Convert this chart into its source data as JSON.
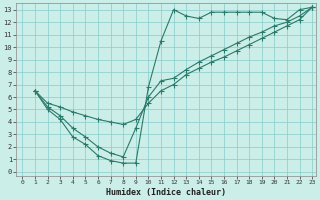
{
  "xlabel": "Humidex (Indice chaleur)",
  "bg_color": "#cceee8",
  "grid_color": "#88cccc",
  "line_color": "#2a7a6a",
  "xlim": [
    -0.5,
    23.3
  ],
  "ylim": [
    -0.3,
    13.5
  ],
  "xticks": [
    0,
    1,
    2,
    3,
    4,
    5,
    6,
    7,
    8,
    9,
    10,
    11,
    12,
    13,
    14,
    15,
    16,
    17,
    18,
    19,
    20,
    21,
    22,
    23
  ],
  "yticks": [
    0,
    1,
    2,
    3,
    4,
    5,
    6,
    7,
    8,
    9,
    10,
    11,
    12,
    13
  ],
  "line1_x": [
    1,
    2,
    3,
    4,
    5,
    6,
    7,
    8,
    9,
    10,
    11,
    12,
    13,
    14,
    15,
    16,
    17,
    18,
    19,
    20,
    21,
    22,
    23
  ],
  "line1_y": [
    6.5,
    5.0,
    4.2,
    2.8,
    2.2,
    1.3,
    0.9,
    0.7,
    0.7,
    6.8,
    10.5,
    13.0,
    12.5,
    12.3,
    12.8,
    12.8,
    12.8,
    12.8,
    12.8,
    12.3,
    12.2,
    13.0,
    13.2
  ],
  "line2_x": [
    1,
    2,
    3,
    4,
    5,
    6,
    7,
    8,
    9,
    10,
    11,
    12,
    13,
    14,
    15,
    16,
    17,
    18,
    19,
    20,
    21,
    22,
    23
  ],
  "line2_y": [
    6.5,
    5.5,
    5.2,
    4.8,
    4.5,
    4.2,
    4.0,
    3.8,
    4.2,
    5.5,
    6.5,
    7.0,
    7.8,
    8.3,
    8.8,
    9.2,
    9.7,
    10.2,
    10.7,
    11.2,
    11.7,
    12.2,
    13.2
  ],
  "line3_x": [
    1,
    2,
    3,
    4,
    5,
    6,
    7,
    8,
    9,
    10,
    11,
    12,
    13,
    14,
    15,
    16,
    17,
    18,
    19,
    20,
    21,
    22,
    23
  ],
  "line3_y": [
    6.5,
    5.2,
    4.5,
    3.5,
    2.8,
    2.0,
    1.5,
    1.2,
    3.5,
    6.0,
    7.3,
    7.5,
    8.2,
    8.8,
    9.3,
    9.8,
    10.3,
    10.8,
    11.2,
    11.7,
    12.0,
    12.5,
    13.2
  ]
}
